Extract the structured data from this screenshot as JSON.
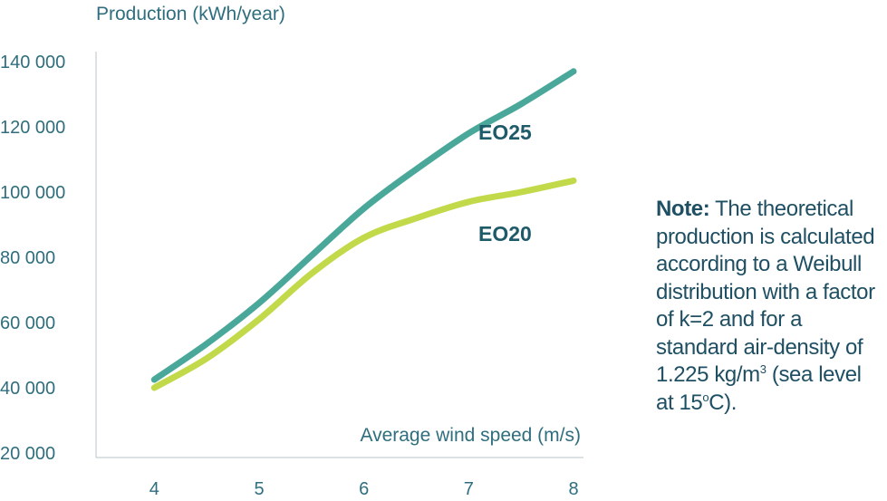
{
  "chart_data": {
    "type": "line",
    "ylabel": "Production (kWh/year)",
    "xlabel": "Average wind speed (m/s)",
    "x": [
      4,
      5,
      6,
      7,
      8
    ],
    "xlim": [
      3.6,
      8.05
    ],
    "ylim": [
      20000,
      140000
    ],
    "yticks": [
      20000,
      40000,
      60000,
      80000,
      100000,
      120000,
      140000
    ],
    "ytick_labels": [
      "20 000",
      "40 000",
      "60 000",
      "80 000",
      "100 000",
      "120 000",
      "140 000"
    ],
    "xtick_labels": [
      "4",
      "5",
      "6",
      "7",
      "8"
    ],
    "grid": false,
    "series": [
      {
        "name": "EO25",
        "color": "#4aa89a",
        "points": [
          [
            4,
            42500
          ],
          [
            4.5,
            53500
          ],
          [
            5,
            66000
          ],
          [
            5.5,
            80500
          ],
          [
            6,
            95000
          ],
          [
            6.5,
            107000
          ],
          [
            7,
            118000
          ],
          [
            7.5,
            127000
          ],
          [
            8,
            137000
          ]
        ]
      },
      {
        "name": "EO20",
        "color": "#c2d94a",
        "points": [
          [
            4,
            40000
          ],
          [
            4.5,
            49000
          ],
          [
            5,
            61000
          ],
          [
            5.5,
            75000
          ],
          [
            6,
            86000
          ],
          [
            6.5,
            92000
          ],
          [
            7,
            97000
          ],
          [
            7.5,
            100000
          ],
          [
            8,
            103500
          ]
        ]
      }
    ]
  },
  "note": {
    "label": "Note:",
    "text_before_sup1": " The theoretical production is calculated according to a Weibull distribution with a factor of k=2 and for a standard air-density of 1.225 kg/m",
    "sup1": "3",
    "text_before_sup2": " (sea level at 15",
    "sup2": "o",
    "text_end": "C)."
  }
}
